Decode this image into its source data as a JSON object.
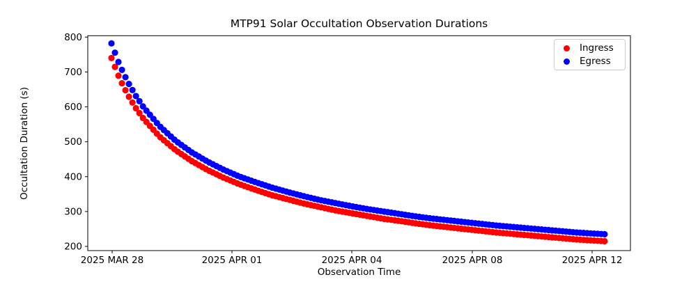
{
  "chart_data": {
    "type": "scatter",
    "title": "MTP91 Solar Occultation Observation Durations",
    "xlabel": "Observation Time",
    "ylabel": "Occultation Duration (s)",
    "ylim": [
      200,
      800
    ],
    "yticks": [
      200,
      300,
      400,
      500,
      600,
      700,
      800
    ],
    "xtick_labels": [
      "2025 MAR 28",
      "2025 APR 01",
      "2025 APR 04",
      "2025 APR 08",
      "2025 APR 12"
    ],
    "grid": false,
    "legend_position": "upper right",
    "series": [
      {
        "name": "Ingress",
        "color": "#ff0000",
        "marker": "circle"
      },
      {
        "name": "Egress",
        "color": "#0000ff",
        "marker": "circle"
      }
    ],
    "x_unit": "days since first observation (2025 MAR 28)",
    "n_observations_per_series": 142,
    "points": {
      "t_days": [
        0,
        0.25,
        0.5,
        0.75,
        1,
        1.5,
        2,
        2.5,
        3,
        3.5,
        4,
        4.5,
        5,
        5.5,
        6,
        6.5,
        7,
        7.5,
        8,
        8.5,
        9,
        9.5,
        10,
        10.5,
        11,
        11.5,
        12,
        12.5,
        13,
        13.5,
        14,
        14.5,
        15,
        15.39
      ],
      "ingress_s": [
        740,
        682,
        636,
        598,
        566,
        515,
        476,
        445,
        419,
        397,
        378,
        362,
        347,
        335,
        323,
        313,
        303,
        295,
        287,
        279,
        273,
        266,
        260,
        255,
        250,
        245,
        240,
        236,
        232,
        228,
        224,
        220,
        217,
        215
      ],
      "egress_s": [
        782,
        721,
        673,
        633,
        599,
        545,
        503,
        470,
        443,
        420,
        400,
        384,
        369,
        356,
        344,
        333,
        324,
        315,
        307,
        300,
        293,
        286,
        280,
        275,
        270,
        265,
        260,
        256,
        252,
        248,
        244,
        240,
        237,
        235
      ]
    }
  }
}
